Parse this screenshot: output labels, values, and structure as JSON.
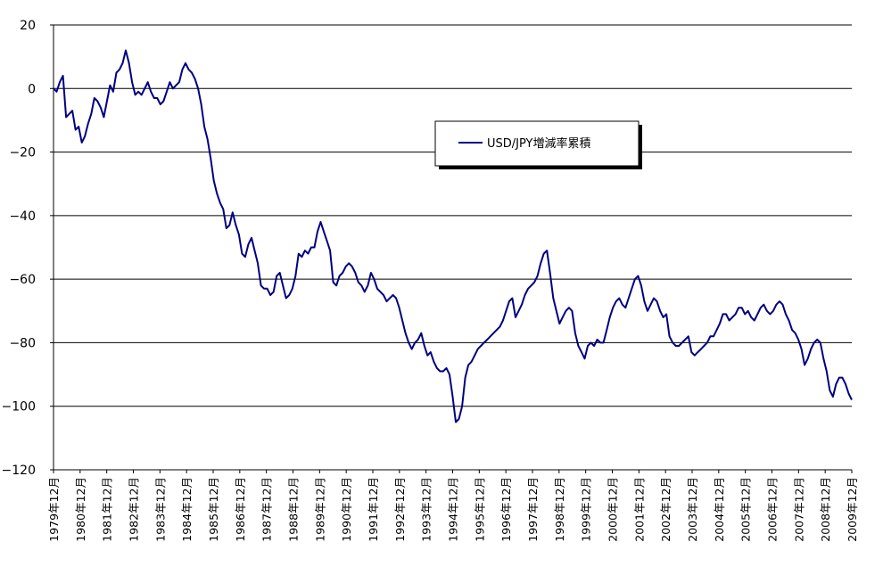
{
  "chart_data": {
    "type": "line",
    "title": "",
    "xlabel": "",
    "ylabel": "",
    "ylim": [
      -120,
      20
    ],
    "yticks": [
      20,
      0,
      -20,
      -40,
      -60,
      -80,
      -100,
      -120
    ],
    "ytick_labels": [
      "20",
      "0",
      "−20",
      "−40",
      "−60",
      "−80",
      "−100",
      "−120"
    ],
    "grid": "horizontal",
    "legend_position": "right-center",
    "x_categories": [
      "1979年12月",
      "1980年12月",
      "1981年12月",
      "1982年12月",
      "1983年12月",
      "1984年12月",
      "1985年12月",
      "1986年12月",
      "1987年12月",
      "1988年12月",
      "1989年12月",
      "1990年12月",
      "1991年12月",
      "1992年12月",
      "1993年12月",
      "1994年12月",
      "1995年12月",
      "1996年12月",
      "1997年12月",
      "1998年12月",
      "1999年12月",
      "2000年12月",
      "2001年12月",
      "2002年12月",
      "2003年12月",
      "2004年12月",
      "2005年12月",
      "2006年12月",
      "2007年12月",
      "2008年12月",
      "2009年12月"
    ],
    "series": [
      {
        "name": "USD/JPY増減率累積",
        "color": "#000080",
        "points": [
          [
            1979.92,
            0
          ],
          [
            1980.0,
            -1
          ],
          [
            1980.1,
            2
          ],
          [
            1980.2,
            4
          ],
          [
            1980.3,
            -9
          ],
          [
            1980.4,
            -8
          ],
          [
            1980.5,
            -7
          ],
          [
            1980.6,
            -13
          ],
          [
            1980.7,
            -12
          ],
          [
            1980.8,
            -17
          ],
          [
            1980.9,
            -15
          ],
          [
            1981.0,
            -11
          ],
          [
            1981.1,
            -8
          ],
          [
            1981.2,
            -3
          ],
          [
            1981.3,
            -4
          ],
          [
            1981.4,
            -6
          ],
          [
            1981.5,
            -9
          ],
          [
            1981.6,
            -4
          ],
          [
            1981.7,
            1
          ],
          [
            1981.75,
            -1
          ],
          [
            1981.8,
            5
          ],
          [
            1981.9,
            6
          ],
          [
            1982.0,
            8
          ],
          [
            1982.1,
            12
          ],
          [
            1982.15,
            8
          ],
          [
            1982.2,
            2
          ],
          [
            1982.3,
            -2
          ],
          [
            1982.4,
            -1
          ],
          [
            1982.5,
            -2
          ],
          [
            1982.6,
            0
          ],
          [
            1982.7,
            2
          ],
          [
            1982.8,
            -1
          ],
          [
            1982.9,
            -3
          ],
          [
            1983.0,
            -3
          ],
          [
            1983.1,
            -5
          ],
          [
            1983.2,
            -4
          ],
          [
            1983.3,
            -1
          ],
          [
            1983.4,
            2
          ],
          [
            1983.5,
            0
          ],
          [
            1983.6,
            1
          ],
          [
            1983.7,
            2
          ],
          [
            1983.8,
            6
          ],
          [
            1983.9,
            8
          ],
          [
            1984.0,
            6
          ],
          [
            1984.1,
            5
          ],
          [
            1984.2,
            3
          ],
          [
            1984.3,
            0
          ],
          [
            1984.4,
            -5
          ],
          [
            1984.5,
            -12
          ],
          [
            1984.6,
            -16
          ],
          [
            1984.7,
            -22
          ],
          [
            1984.8,
            -29
          ],
          [
            1984.9,
            -33
          ],
          [
            1985.0,
            -36
          ],
          [
            1985.1,
            -38
          ],
          [
            1985.2,
            -44
          ],
          [
            1985.3,
            -43
          ],
          [
            1985.4,
            -39
          ],
          [
            1985.5,
            -43
          ],
          [
            1985.6,
            -46
          ],
          [
            1985.7,
            -52
          ],
          [
            1985.8,
            -53
          ],
          [
            1985.9,
            -49
          ],
          [
            1986.0,
            -47
          ],
          [
            1986.1,
            -51
          ],
          [
            1986.2,
            -55
          ],
          [
            1986.3,
            -62
          ],
          [
            1986.4,
            -63
          ],
          [
            1986.5,
            -63
          ],
          [
            1986.6,
            -65
          ],
          [
            1986.7,
            -64
          ],
          [
            1986.8,
            -59
          ],
          [
            1986.9,
            -58
          ],
          [
            1987.0,
            -62
          ],
          [
            1987.1,
            -66
          ],
          [
            1987.2,
            -65
          ],
          [
            1987.3,
            -63
          ],
          [
            1987.4,
            -59
          ],
          [
            1987.5,
            -52
          ],
          [
            1987.6,
            -53
          ],
          [
            1987.7,
            -51
          ],
          [
            1987.8,
            -52
          ],
          [
            1987.9,
            -50
          ],
          [
            1988.0,
            -50
          ],
          [
            1988.1,
            -45
          ],
          [
            1988.2,
            -42
          ],
          [
            1988.3,
            -45
          ],
          [
            1988.4,
            -48
          ],
          [
            1988.5,
            -51
          ],
          [
            1988.6,
            -61
          ],
          [
            1988.7,
            -62
          ],
          [
            1988.8,
            -59
          ],
          [
            1988.9,
            -58
          ],
          [
            1989.0,
            -56
          ],
          [
            1989.1,
            -55
          ],
          [
            1989.2,
            -56
          ],
          [
            1989.3,
            -58
          ],
          [
            1989.4,
            -61
          ],
          [
            1989.5,
            -62
          ],
          [
            1989.6,
            -64
          ],
          [
            1989.7,
            -62
          ],
          [
            1989.8,
            -58
          ],
          [
            1989.9,
            -60
          ],
          [
            1990.0,
            -63
          ],
          [
            1990.1,
            -64
          ],
          [
            1990.2,
            -65
          ],
          [
            1990.3,
            -67
          ],
          [
            1990.4,
            -66
          ],
          [
            1990.5,
            -65
          ],
          [
            1990.6,
            -66
          ],
          [
            1990.7,
            -69
          ],
          [
            1990.8,
            -73
          ],
          [
            1990.9,
            -77
          ],
          [
            1991.0,
            -80
          ],
          [
            1991.1,
            -82
          ],
          [
            1991.2,
            -80
          ],
          [
            1991.3,
            -79
          ],
          [
            1991.4,
            -77
          ],
          [
            1991.5,
            -81
          ],
          [
            1991.6,
            -84
          ],
          [
            1991.7,
            -83
          ],
          [
            1991.8,
            -86
          ],
          [
            1991.9,
            -88
          ],
          [
            1992.0,
            -89
          ],
          [
            1992.1,
            -89
          ],
          [
            1992.2,
            -88
          ],
          [
            1992.3,
            -90
          ],
          [
            1992.4,
            -97
          ],
          [
            1992.5,
            -105
          ],
          [
            1992.6,
            -104
          ],
          [
            1992.7,
            -100
          ],
          [
            1992.8,
            -91
          ],
          [
            1992.9,
            -87
          ],
          [
            1993.0,
            -86
          ],
          [
            1993.1,
            -84
          ],
          [
            1993.2,
            -82
          ],
          [
            1993.3,
            -81
          ],
          [
            1993.4,
            -80
          ],
          [
            1993.5,
            -79
          ],
          [
            1993.6,
            -78
          ],
          [
            1993.7,
            -77
          ],
          [
            1993.8,
            -76
          ],
          [
            1993.9,
            -75
          ],
          [
            1994.0,
            -73
          ],
          [
            1994.1,
            -70
          ],
          [
            1994.2,
            -67
          ],
          [
            1994.3,
            -66
          ],
          [
            1994.4,
            -72
          ],
          [
            1994.5,
            -70
          ],
          [
            1994.6,
            -68
          ],
          [
            1994.7,
            -65
          ],
          [
            1994.8,
            -63
          ],
          [
            1994.9,
            -62
          ],
          [
            1995.0,
            -61
          ],
          [
            1995.1,
            -59
          ],
          [
            1995.2,
            -55
          ],
          [
            1995.3,
            -52
          ],
          [
            1995.35,
            -51
          ],
          [
            1995.4,
            -58
          ],
          [
            1995.5,
            -66
          ],
          [
            1995.6,
            -70
          ],
          [
            1995.7,
            -74
          ],
          [
            1995.8,
            -72
          ],
          [
            1995.9,
            -70
          ],
          [
            1996.0,
            -69
          ],
          [
            1996.1,
            -70
          ],
          [
            1996.2,
            -77
          ],
          [
            1996.3,
            -81
          ],
          [
            1996.4,
            -83
          ],
          [
            1996.5,
            -85
          ],
          [
            1996.6,
            -81
          ],
          [
            1996.7,
            -80
          ],
          [
            1996.8,
            -81
          ],
          [
            1996.9,
            -79
          ],
          [
            1997.0,
            -80
          ],
          [
            1997.1,
            -80
          ],
          [
            1997.2,
            -76
          ],
          [
            1997.3,
            -72
          ],
          [
            1997.4,
            -69
          ],
          [
            1997.5,
            -67
          ],
          [
            1997.6,
            -66
          ],
          [
            1997.7,
            -68
          ],
          [
            1997.8,
            -69
          ],
          [
            1997.9,
            -66
          ],
          [
            1998.0,
            -63
          ],
          [
            1998.1,
            -60
          ],
          [
            1998.2,
            -59
          ],
          [
            1998.3,
            -62
          ],
          [
            1998.4,
            -67
          ],
          [
            1998.5,
            -70
          ],
          [
            1998.6,
            -68
          ],
          [
            1998.7,
            -66
          ],
          [
            1998.8,
            -67
          ],
          [
            1998.9,
            -70
          ],
          [
            1999.0,
            -72
          ],
          [
            1999.1,
            -71
          ],
          [
            1999.2,
            -78
          ],
          [
            1999.3,
            -80
          ],
          [
            1999.4,
            -81
          ],
          [
            1999.5,
            -81
          ],
          [
            1999.6,
            -80
          ],
          [
            1999.7,
            -79
          ],
          [
            1999.8,
            -78
          ],
          [
            1999.9,
            -83
          ],
          [
            2000.0,
            -84
          ],
          [
            2000.1,
            -83
          ],
          [
            2000.2,
            -82
          ],
          [
            2000.3,
            -81
          ],
          [
            2000.4,
            -80
          ],
          [
            2000.5,
            -78
          ],
          [
            2000.6,
            -78
          ],
          [
            2000.7,
            -76
          ],
          [
            2000.8,
            -74
          ],
          [
            2000.9,
            -71
          ],
          [
            2001.0,
            -71
          ],
          [
            2001.1,
            -73
          ],
          [
            2001.2,
            -72
          ],
          [
            2001.3,
            -71
          ],
          [
            2001.4,
            -69
          ],
          [
            2001.5,
            -69
          ],
          [
            2001.6,
            -71
          ],
          [
            2001.7,
            -70
          ],
          [
            2001.8,
            -72
          ],
          [
            2001.9,
            -73
          ],
          [
            2002.0,
            -71
          ],
          [
            2002.1,
            -69
          ],
          [
            2002.2,
            -68
          ],
          [
            2002.3,
            -70
          ],
          [
            2002.4,
            -71
          ],
          [
            2002.5,
            -70
          ],
          [
            2002.6,
            -68
          ],
          [
            2002.7,
            -67
          ],
          [
            2002.8,
            -68
          ],
          [
            2002.9,
            -71
          ],
          [
            2003.0,
            -73
          ],
          [
            2003.1,
            -76
          ],
          [
            2003.2,
            -77
          ],
          [
            2003.3,
            -79
          ],
          [
            2003.4,
            -82
          ],
          [
            2003.5,
            -87
          ],
          [
            2003.6,
            -85
          ],
          [
            2003.7,
            -82
          ],
          [
            2003.8,
            -80
          ],
          [
            2003.9,
            -79
          ],
          [
            2004.0,
            -80
          ],
          [
            2004.1,
            -85
          ],
          [
            2004.2,
            -89
          ],
          [
            2004.3,
            -95
          ],
          [
            2004.4,
            -97
          ],
          [
            2004.5,
            -93
          ],
          [
            2004.6,
            -91
          ],
          [
            2004.7,
            -91
          ],
          [
            2004.8,
            -93
          ],
          [
            2004.9,
            -96
          ],
          [
            2005.0,
            -98
          ]
        ]
      }
    ]
  }
}
